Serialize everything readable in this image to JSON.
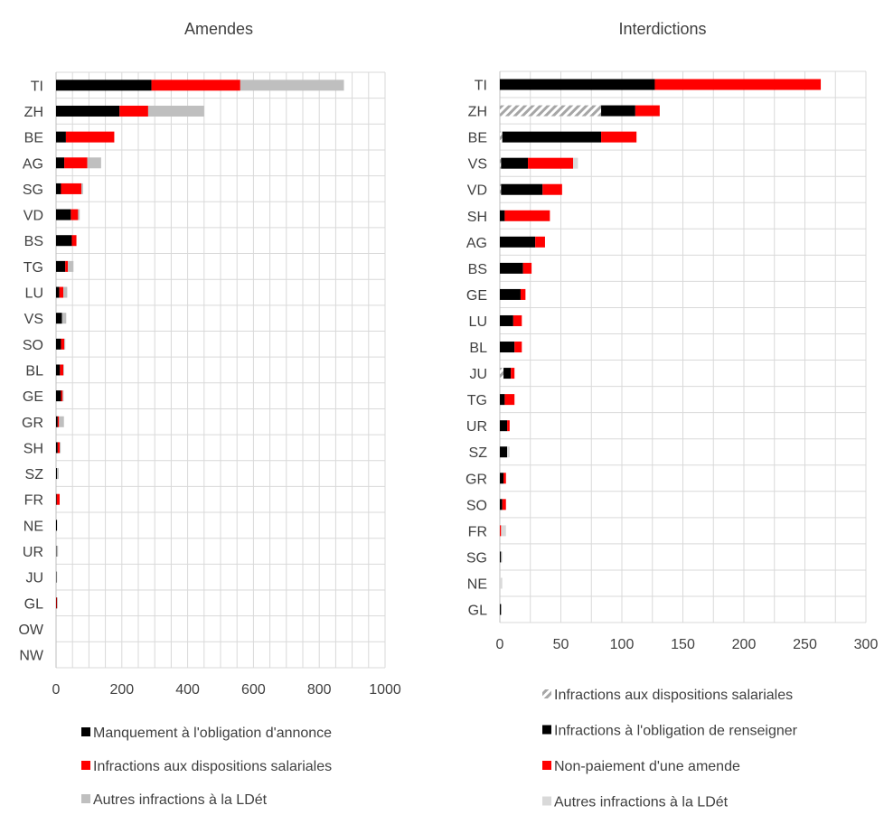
{
  "chart_data": [
    {
      "type": "bar",
      "orientation": "horizontal",
      "stacked": true,
      "title": "Amendes",
      "categories": [
        "TI",
        "ZH",
        "BE",
        "AG",
        "SG",
        "VD",
        "BS",
        "TG",
        "LU",
        "VS",
        "SO",
        "BL",
        "GE",
        "GR",
        "SH",
        "SZ",
        "FR",
        "NE",
        "UR",
        "JU",
        "GL",
        "OW",
        "NW"
      ],
      "series": [
        {
          "name": "Manquement à l'obligation d'annonce",
          "color": "#000000",
          "pattern": "solid",
          "values": [
            290,
            193,
            30,
            25,
            15,
            45,
            48,
            28,
            10,
            18,
            15,
            12,
            15,
            5,
            5,
            3,
            2,
            3,
            1,
            1,
            1,
            0,
            0
          ]
        },
        {
          "name": "Infractions aux dispositions salariales",
          "color": "#ff0000",
          "pattern": "solid",
          "values": [
            270,
            87,
            147,
            70,
            62,
            22,
            14,
            8,
            12,
            0,
            10,
            10,
            5,
            4,
            6,
            0,
            9,
            0,
            0,
            0,
            2,
            0,
            0
          ]
        },
        {
          "name": "Autres infractions à la LDét",
          "color": "#bfbfbf",
          "pattern": "solid",
          "values": [
            315,
            170,
            0,
            42,
            5,
            5,
            0,
            17,
            12,
            13,
            3,
            2,
            3,
            15,
            3,
            5,
            0,
            0,
            5,
            1,
            1,
            0,
            0
          ]
        }
      ],
      "xlim": [
        0,
        1000
      ],
      "xticks": [
        0,
        200,
        400,
        600,
        800,
        1000
      ],
      "grid": true,
      "legend_position": "bottom"
    },
    {
      "type": "bar",
      "orientation": "horizontal",
      "stacked": true,
      "title": "Interdictions",
      "categories": [
        "TI",
        "ZH",
        "BE",
        "VS",
        "VD",
        "SH",
        "AG",
        "BS",
        "GE",
        "LU",
        "BL",
        "JU",
        "TG",
        "UR",
        "SZ",
        "GR",
        "SO",
        "FR",
        "SG",
        "NE",
        "GL"
      ],
      "series": [
        {
          "name": "Infractions aux dispositions salariales",
          "color": "#a6a6a6",
          "pattern": "hatch",
          "values": [
            0,
            83,
            2,
            1,
            1,
            0,
            0,
            0,
            0,
            0,
            0,
            3,
            0,
            0,
            0,
            0,
            0,
            0,
            0,
            0,
            0
          ]
        },
        {
          "name": "Infractions à l'obligation de renseigner",
          "color": "#000000",
          "pattern": "solid",
          "values": [
            127,
            28,
            81,
            22,
            34,
            4,
            29,
            19,
            17,
            11,
            12,
            6,
            4,
            6,
            6,
            3,
            2,
            0,
            1,
            0,
            1
          ]
        },
        {
          "name": "Non-paiement d'une amende",
          "color": "#ff0000",
          "pattern": "solid",
          "values": [
            136,
            20,
            29,
            37,
            16,
            37,
            8,
            7,
            4,
            7,
            6,
            3,
            8,
            2,
            0,
            2,
            3,
            1,
            0,
            0,
            0
          ]
        },
        {
          "name": "Autres infractions à la LDét",
          "color": "#d9d9d9",
          "pattern": "solid",
          "values": [
            0,
            0,
            0,
            4,
            0,
            0,
            0,
            0,
            0,
            0,
            0,
            0,
            0,
            0,
            2,
            0,
            0,
            4,
            1,
            2,
            0
          ]
        }
      ],
      "xlim": [
        0,
        300
      ],
      "xticks": [
        0,
        50,
        100,
        150,
        200,
        250,
        300
      ],
      "grid": true,
      "legend_position": "bottom"
    }
  ]
}
